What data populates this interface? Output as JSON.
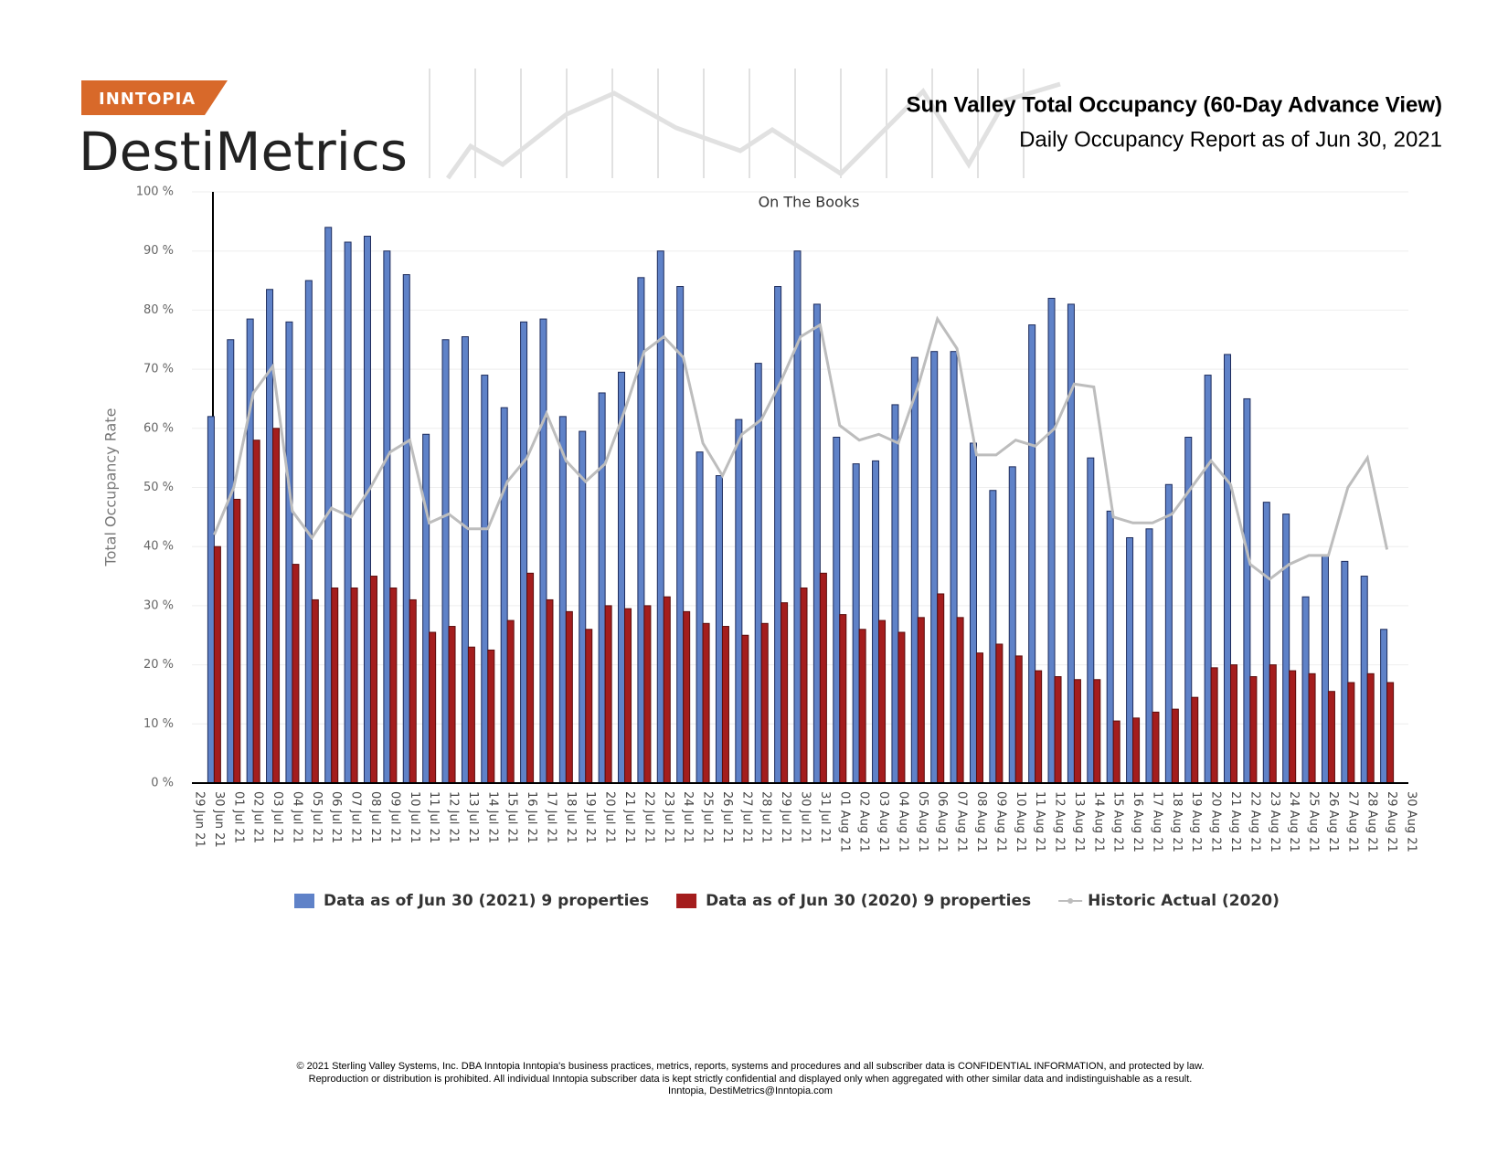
{
  "header": {
    "brand": "INNTOPIA",
    "product": "DestiMetrics"
  },
  "chart_data": {
    "type": "bar",
    "title": "Sun Valley Total Occupancy (60-Day Advance View)",
    "subtitle": "Daily Occupancy Report as of Jun 30, 2021",
    "annotation": "On The Books",
    "y_label": "Total Occupancy Rate",
    "categories": [
      "29 Jun 21",
      "30 Jun 21",
      "01 Jul 21",
      "02 Jul 21",
      "03 Jul 21",
      "04 Jul 21",
      "05 Jul 21",
      "06 Jul 21",
      "07 Jul 21",
      "08 Jul 21",
      "09 Jul 21",
      "10 Jul 21",
      "11 Jul 21",
      "12 Jul 21",
      "13 Jul 21",
      "14 Jul 21",
      "15 Jul 21",
      "16 Jul 21",
      "17 Jul 21",
      "18 Jul 21",
      "19 Jul 21",
      "20 Jul 21",
      "21 Jul 21",
      "22 Jul 21",
      "23 Jul 21",
      "24 Jul 21",
      "25 Jul 21",
      "26 Jul 21",
      "27 Jul 21",
      "28 Jul 21",
      "29 Jul 21",
      "30 Jul 21",
      "31 Jul 21",
      "01 Aug 21",
      "02 Aug 21",
      "03 Aug 21",
      "04 Aug 21",
      "05 Aug 21",
      "06 Aug 21",
      "07 Aug 21",
      "08 Aug 21",
      "09 Aug 21",
      "10 Aug 21",
      "11 Aug 21",
      "12 Aug 21",
      "13 Aug 21",
      "14 Aug 21",
      "15 Aug 21",
      "16 Aug 21",
      "17 Aug 21",
      "18 Aug 21",
      "19 Aug 21",
      "20 Aug 21",
      "21 Aug 21",
      "22 Aug 21",
      "23 Aug 21",
      "24 Aug 21",
      "25 Aug 21",
      "26 Aug 21",
      "27 Aug 21",
      "28 Aug 21",
      "29 Aug 21",
      "30 Aug 21"
    ],
    "series": [
      {
        "name": "Data as of Jun 30 (2021) 9 properties",
        "type": "bar",
        "color": "#5f82c8",
        "values": [
          null,
          62,
          75,
          78.5,
          83.5,
          78,
          85,
          94,
          91.5,
          92.5,
          90,
          86,
          59,
          75,
          75.5,
          69,
          63.5,
          78,
          78.5,
          62,
          59.5,
          66,
          69.5,
          85.5,
          90,
          84,
          56,
          52,
          61.5,
          71,
          84,
          90,
          81,
          58.5,
          54,
          54.5,
          64,
          72,
          73,
          73,
          57.5,
          49.5,
          53.5,
          77.5,
          82,
          81,
          55,
          46,
          41.5,
          43,
          50.5,
          58.5,
          69,
          72.5,
          65,
          47.5,
          45.5,
          31.5,
          38.5,
          37.5,
          35,
          26,
          null
        ]
      },
      {
        "name": "Data as of Jun 30 (2020) 9 properties",
        "type": "bar",
        "color": "#a41d1d",
        "values": [
          null,
          40,
          48,
          58,
          60,
          37,
          31,
          33,
          33,
          35,
          33,
          31,
          25.5,
          26.5,
          23,
          22.5,
          27.5,
          35.5,
          31,
          29,
          26,
          30,
          29.5,
          30,
          31.5,
          29,
          27,
          26.5,
          25,
          27,
          30.5,
          33,
          35.5,
          28.5,
          26,
          27.5,
          25.5,
          28,
          32,
          28,
          22,
          23.5,
          21.5,
          19,
          18,
          17.5,
          17.5,
          10.5,
          11,
          12,
          12.5,
          14.5,
          19.5,
          20,
          18,
          20,
          19,
          18.5,
          15.5,
          17,
          18.5,
          17,
          null
        ]
      },
      {
        "name": "Historic Actual (2020)",
        "type": "line",
        "color": "#bdbdbd",
        "values": [
          null,
          42,
          50,
          66,
          70.5,
          46,
          41.5,
          46.5,
          45,
          50,
          56,
          58,
          44,
          45.5,
          43,
          43,
          51,
          55,
          62.5,
          54.5,
          51,
          54,
          63,
          73,
          75.5,
          72,
          57.5,
          52,
          59,
          61.5,
          68,
          75.5,
          77.5,
          60.5,
          58,
          59,
          57.5,
          67,
          78.5,
          73.5,
          55.5,
          55.5,
          58,
          57,
          60,
          67.5,
          67,
          45,
          44,
          44,
          45.5,
          50,
          54.5,
          50.5,
          37,
          34.5,
          37,
          38.5,
          38.5,
          50,
          55,
          39.5,
          null
        ]
      }
    ],
    "ylim": [
      0,
      100
    ],
    "yticks": [
      {
        "value": 0,
        "label": "0 %"
      },
      {
        "value": 10,
        "label": "10 %"
      },
      {
        "value": 20,
        "label": "20 %"
      },
      {
        "value": 30,
        "label": "30 %"
      },
      {
        "value": 40,
        "label": "40 %"
      },
      {
        "value": 50,
        "label": "50 %"
      },
      {
        "value": 60,
        "label": "60 %"
      },
      {
        "value": 70,
        "label": "70 %"
      },
      {
        "value": 80,
        "label": "80 %"
      },
      {
        "value": 90,
        "label": "90 %"
      },
      {
        "value": 100,
        "label": "100 %"
      }
    ],
    "grid": true,
    "legend": "bottom"
  },
  "footer": [
    "© 2021 Sterling Valley Systems, Inc. DBA Inntopia Inntopia's business practices, metrics, reports, systems and procedures and all subscriber data is CONFIDENTIAL INFORMATION, and protected by law.",
    "Reproduction or distribution is prohibited. All individual Inntopia subscriber data is kept strictly confidential and displayed only when aggregated with other similar data and indistinguishable as a result.",
    "Inntopia, DestiMetrics@Inntopia.com"
  ]
}
